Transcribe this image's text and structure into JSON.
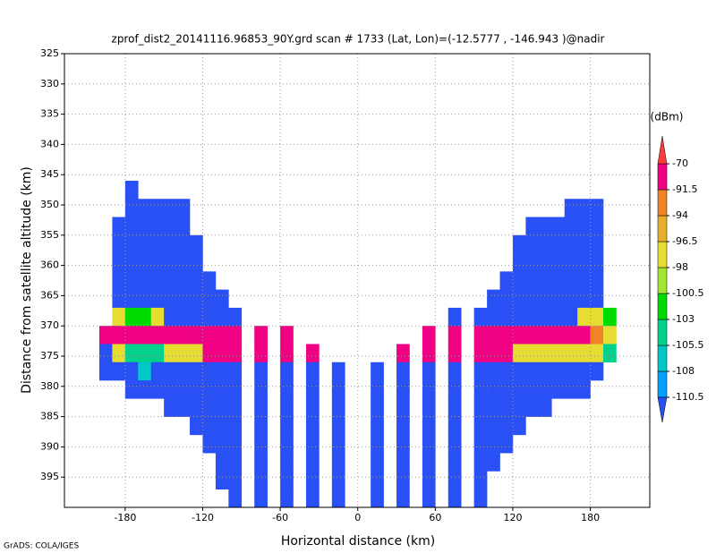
{
  "chart_data": {
    "type": "heatmap",
    "title": "zprof_dist2_20141116.96853_90Y.grd  scan # 1733  (Lat, Lon)=(-12.5777 , -146.943 )@nadir",
    "x_label": "Horizontal distance (km)",
    "y_label": "Distance from satellite altitude (km)",
    "footer": "GrADS: COLA/IGES",
    "xlim": [
      -227,
      226
    ],
    "ylim": [
      325,
      400
    ],
    "invert_y": true,
    "grid": true,
    "xticks": [
      -180,
      -120,
      -60,
      0,
      60,
      120,
      180
    ],
    "yticks": [
      325,
      330,
      335,
      340,
      345,
      350,
      355,
      360,
      365,
      370,
      375,
      380,
      385,
      390,
      395
    ],
    "xbins": [
      -200,
      -190,
      -180,
      -170,
      -160,
      -150,
      -140,
      -130,
      -120,
      -110,
      -100,
      -90,
      -80,
      -70,
      -60,
      -50,
      -40,
      -30,
      -20,
      -10,
      0,
      10,
      20,
      30,
      40,
      50,
      60,
      70,
      80,
      90,
      100,
      110,
      120,
      130,
      140,
      150,
      160,
      170,
      180,
      190,
      200
    ],
    "ybins": [
      346,
      349,
      352,
      355,
      358,
      361,
      364,
      367,
      370,
      373,
      376,
      379,
      382,
      385,
      388,
      391,
      394,
      397,
      400
    ],
    "z": [
      [
        null,
        null,
        -115,
        null,
        null,
        null,
        null,
        null,
        null,
        null,
        null,
        null,
        null,
        null,
        null,
        null,
        null,
        null,
        null,
        null,
        null,
        null,
        null,
        null,
        null,
        null,
        null,
        null,
        null,
        null,
        null,
        null,
        null,
        null,
        null,
        null,
        null,
        null,
        null,
        null
      ],
      [
        null,
        null,
        -115,
        -115,
        -115,
        -115,
        -115,
        null,
        null,
        null,
        null,
        null,
        null,
        null,
        null,
        null,
        null,
        null,
        null,
        null,
        null,
        null,
        null,
        null,
        null,
        null,
        null,
        null,
        null,
        null,
        null,
        null,
        null,
        null,
        null,
        null,
        -115,
        -115,
        -115,
        null
      ],
      [
        null,
        -115,
        -115,
        -115,
        -115,
        -115,
        -115,
        null,
        null,
        null,
        null,
        null,
        null,
        null,
        null,
        null,
        null,
        null,
        null,
        null,
        null,
        null,
        null,
        null,
        null,
        null,
        null,
        null,
        null,
        null,
        null,
        null,
        null,
        -115,
        -115,
        -115,
        -115,
        -115,
        -115,
        null
      ],
      [
        null,
        -115,
        -115,
        -115,
        -115,
        -115,
        -115,
        -115,
        null,
        null,
        null,
        null,
        null,
        null,
        null,
        null,
        null,
        null,
        null,
        null,
        null,
        null,
        null,
        null,
        null,
        null,
        null,
        null,
        null,
        null,
        null,
        null,
        -115,
        -115,
        -115,
        -115,
        -115,
        -115,
        -115,
        null
      ],
      [
        null,
        -115,
        -115,
        -115,
        -115,
        -115,
        -115,
        -115,
        null,
        null,
        null,
        null,
        null,
        null,
        null,
        null,
        null,
        null,
        null,
        null,
        null,
        null,
        null,
        null,
        null,
        null,
        null,
        null,
        null,
        null,
        null,
        null,
        -115,
        -115,
        -115,
        -115,
        -115,
        -115,
        -115,
        null
      ],
      [
        null,
        -115,
        -115,
        -115,
        -115,
        -115,
        -115,
        -115,
        -115,
        null,
        null,
        null,
        null,
        null,
        null,
        null,
        null,
        null,
        null,
        null,
        null,
        null,
        null,
        null,
        null,
        null,
        null,
        null,
        null,
        null,
        null,
        -115,
        -115,
        -115,
        -115,
        -115,
        -115,
        -115,
        -115,
        null
      ],
      [
        null,
        -115,
        -115,
        -115,
        -115,
        -115,
        -115,
        -115,
        -115,
        -115,
        null,
        null,
        null,
        null,
        null,
        null,
        null,
        null,
        null,
        null,
        null,
        null,
        null,
        null,
        null,
        null,
        null,
        null,
        null,
        null,
        -115,
        -115,
        -115,
        -115,
        -115,
        -115,
        -115,
        -115,
        -115,
        null
      ],
      [
        null,
        -97,
        -101,
        -101,
        -97,
        -115,
        -115,
        -115,
        -115,
        -115,
        -115,
        null,
        null,
        null,
        null,
        null,
        null,
        null,
        null,
        null,
        null,
        null,
        null,
        null,
        null,
        null,
        null,
        -115,
        null,
        -115,
        -115,
        -115,
        -115,
        -115,
        -115,
        -115,
        -115,
        -97,
        -97,
        -101
      ],
      [
        -85,
        -85,
        -85,
        -85,
        -85,
        -85,
        -85,
        -85,
        -85,
        -85,
        -85,
        null,
        -85,
        null,
        -85,
        null,
        null,
        null,
        null,
        null,
        null,
        null,
        null,
        null,
        null,
        -85,
        null,
        -85,
        null,
        -85,
        -85,
        -85,
        -85,
        -85,
        -85,
        -85,
        -85,
        -85,
        -92,
        -97
      ],
      [
        -115,
        -97,
        -105,
        -105,
        -105,
        -97,
        -97,
        -97,
        -85,
        -85,
        -85,
        null,
        -85,
        null,
        -85,
        null,
        -85,
        null,
        null,
        null,
        null,
        null,
        null,
        -85,
        null,
        -85,
        null,
        -85,
        null,
        -85,
        -85,
        -85,
        -97,
        -97,
        -97,
        -97,
        -97,
        -97,
        -97,
        -105
      ],
      [
        -115,
        -115,
        -115,
        -107,
        -115,
        -115,
        -115,
        -115,
        -115,
        -115,
        -115,
        null,
        -115,
        null,
        -115,
        null,
        -115,
        null,
        -115,
        null,
        null,
        -115,
        null,
        -115,
        null,
        -115,
        null,
        -115,
        null,
        -115,
        -115,
        -115,
        -115,
        -115,
        -115,
        -115,
        -115,
        -115,
        -115,
        null
      ],
      [
        null,
        null,
        -115,
        -115,
        -115,
        -115,
        -115,
        -115,
        -115,
        -115,
        -115,
        null,
        -115,
        null,
        -115,
        null,
        -115,
        null,
        -115,
        null,
        null,
        -115,
        null,
        -115,
        null,
        -115,
        null,
        -115,
        null,
        -115,
        -115,
        -115,
        -115,
        -115,
        -115,
        -115,
        -115,
        -115,
        null,
        null
      ],
      [
        null,
        null,
        null,
        null,
        null,
        -115,
        -115,
        -115,
        -115,
        -115,
        -115,
        null,
        -115,
        null,
        -115,
        null,
        -115,
        null,
        -115,
        null,
        null,
        -115,
        null,
        -115,
        null,
        -115,
        null,
        -115,
        null,
        -115,
        -115,
        -115,
        -115,
        -115,
        -115,
        null,
        null,
        null,
        null,
        null
      ],
      [
        null,
        null,
        null,
        null,
        null,
        null,
        null,
        -115,
        -115,
        -115,
        -115,
        null,
        -115,
        null,
        -115,
        null,
        -115,
        null,
        -115,
        null,
        null,
        -115,
        null,
        -115,
        null,
        -115,
        null,
        -115,
        null,
        -115,
        -115,
        -115,
        -115,
        null,
        null,
        null,
        null,
        null,
        null,
        null
      ],
      [
        null,
        null,
        null,
        null,
        null,
        null,
        null,
        null,
        -115,
        -115,
        -115,
        null,
        -115,
        null,
        -115,
        null,
        -115,
        null,
        -115,
        null,
        null,
        -115,
        null,
        -115,
        null,
        -115,
        null,
        -115,
        null,
        -115,
        -115,
        -115,
        null,
        null,
        null,
        null,
        null,
        null,
        null,
        null
      ],
      [
        null,
        null,
        null,
        null,
        null,
        null,
        null,
        null,
        null,
        -115,
        -115,
        null,
        -115,
        null,
        -115,
        null,
        -115,
        null,
        -115,
        null,
        null,
        -115,
        null,
        -115,
        null,
        -115,
        null,
        -115,
        null,
        -115,
        -115,
        null,
        null,
        null,
        null,
        null,
        null,
        null,
        null,
        null
      ],
      [
        null,
        null,
        null,
        null,
        null,
        null,
        null,
        null,
        null,
        -115,
        -115,
        null,
        -115,
        null,
        -115,
        null,
        -115,
        null,
        -115,
        null,
        null,
        -115,
        null,
        -115,
        null,
        -115,
        null,
        -115,
        null,
        -115,
        null,
        null,
        null,
        null,
        null,
        null,
        null,
        null,
        null,
        null
      ],
      [
        null,
        null,
        null,
        null,
        null,
        null,
        null,
        null,
        null,
        null,
        -115,
        null,
        -115,
        null,
        -115,
        null,
        -115,
        null,
        -115,
        null,
        null,
        -115,
        null,
        -115,
        null,
        -115,
        null,
        -115,
        null,
        -115,
        null,
        null,
        null,
        null,
        null,
        null,
        null,
        null,
        null,
        null
      ]
    ],
    "colorbar_title": "(dBm)",
    "levels": [
      -110.5,
      -108,
      -105.5,
      -103,
      -100.5,
      -98,
      -96.5,
      -94,
      -91.5,
      -70
    ],
    "colors": [
      "#2850f5",
      "#00a0ff",
      "#00c8c8",
      "#00d28c",
      "#00dc00",
      "#a0e632",
      "#e6dc32",
      "#e6af2d",
      "#f08228",
      "#f00082",
      "#fa3c3c"
    ]
  }
}
